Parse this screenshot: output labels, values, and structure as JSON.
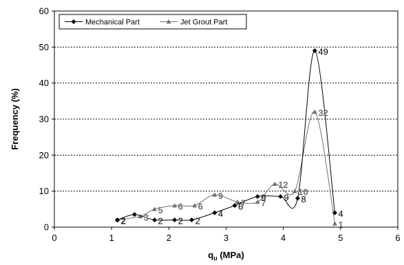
{
  "chart_data": {
    "type": "line",
    "xlabel_main": "q",
    "xlabel_sub": "u",
    "xlabel_unit": " (MPa)",
    "ylabel": "Frequency (%)",
    "xlim": [
      0,
      6
    ],
    "ylim": [
      0,
      60
    ],
    "xticks": [
      0,
      1,
      2,
      3,
      4,
      5,
      6
    ],
    "yticks": [
      0,
      10,
      20,
      30,
      40,
      50,
      60
    ],
    "grid": "horizontal dotted",
    "legend_position": "top-left",
    "series": [
      {
        "name": "Mechanical Part",
        "marker": "diamond",
        "color": "#000000",
        "label_color": "#000000",
        "x": [
          1.1,
          1.4,
          1.75,
          2.1,
          2.4,
          2.8,
          3.15,
          3.55,
          3.95,
          4.25,
          4.55,
          4.9
        ],
        "y": [
          2,
          3.5,
          2,
          2,
          2,
          4,
          6,
          8.5,
          8.5,
          8,
          49,
          4
        ],
        "labels": [
          "2",
          "",
          "2",
          "2",
          "2",
          "4",
          "6",
          "9",
          "9",
          "8",
          "49",
          "4"
        ]
      },
      {
        "name": "Jet Grout Part",
        "marker": "triangle",
        "color": "#707070",
        "label_color": "#707070",
        "x": [
          1.1,
          1.5,
          1.75,
          2.1,
          2.45,
          2.8,
          3.2,
          3.55,
          3.85,
          4.2,
          4.55,
          4.9
        ],
        "y": [
          2,
          3,
          5,
          6,
          6,
          9,
          7,
          7,
          12,
          10,
          32,
          1
        ],
        "labels": [
          "2",
          "3",
          "5",
          "6",
          "6",
          "9",
          "7",
          "7",
          "12",
          "10",
          "32",
          "1"
        ]
      }
    ]
  }
}
